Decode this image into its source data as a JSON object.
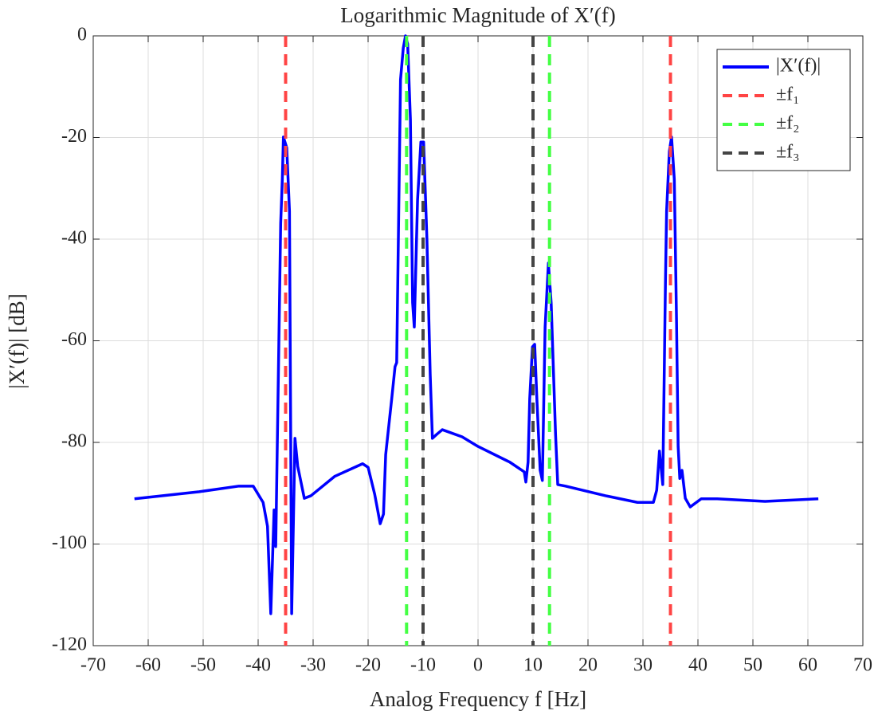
{
  "chart_data": {
    "type": "line",
    "title": "Logarithmic Magnitude of X′(f)",
    "x_label": "Analog Frequency f [Hz]",
    "y_label": "|X′(f)| [dB]",
    "xlim": [
      -70,
      70
    ],
    "ylim": [
      -120,
      0
    ],
    "xticks": [
      -70,
      -60,
      -50,
      -40,
      -30,
      -20,
      -10,
      0,
      10,
      20,
      30,
      40,
      50,
      60,
      70
    ],
    "yticks": [
      -120,
      -100,
      -80,
      -60,
      -40,
      -20,
      0
    ],
    "grid": true,
    "legend": "upper right",
    "series": [
      {
        "name": "|X′(f)|",
        "color": "#0000ff",
        "x": [
          -62.5,
          -50.7,
          -43.5,
          -40.9,
          -39.1,
          -38.3,
          -37.7,
          -37.1,
          -36.8,
          -35.9,
          -35.6,
          -35.4,
          -34.8,
          -34.3,
          -33.9,
          -33.3,
          -32.8,
          -31.6,
          -30.4,
          -26.1,
          -21.0,
          -20.0,
          -18.8,
          -17.8,
          -17.2,
          -16.8,
          -15.7,
          -15.1,
          -14.8,
          -14.1,
          -13.6,
          -13.2,
          -12.8,
          -12.3,
          -11.9,
          -11.6,
          -11.0,
          -10.4,
          -9.9,
          -9.3,
          -8.7,
          -8.3,
          -7.5,
          -6.5,
          -2.9,
          0,
          5.8,
          8.4,
          8.7,
          9.1,
          9.4,
          9.9,
          10.3,
          10.7,
          11.3,
          11.7,
          12.2,
          12.8,
          13.3,
          14.1,
          14.5,
          15.9,
          23.2,
          29,
          31.9,
          32.5,
          33,
          33.6,
          34.1,
          34.3,
          34.8,
          35.2,
          35.7,
          36.1,
          36.4,
          36.7,
          37.1,
          37.7,
          38.6,
          40.6,
          43.5,
          52.2,
          61.9
        ],
        "values": [
          -91.1,
          -89.7,
          -88.6,
          -88.6,
          -91.8,
          -96.5,
          -113.7,
          -93.3,
          -100.5,
          -36.9,
          -28.2,
          -19.9,
          -22,
          -34.5,
          -113.7,
          -79.2,
          -84.7,
          -91,
          -90.5,
          -86.7,
          -84.2,
          -84.9,
          -90.2,
          -96,
          -94.1,
          -82.4,
          -71.4,
          -65.1,
          -64.3,
          -8.6,
          -2.4,
          0,
          -1.6,
          -16.5,
          -52.5,
          -57.3,
          -32.2,
          -20.9,
          -20.9,
          -40,
          -66.7,
          -79.2,
          -78.4,
          -77.5,
          -78.9,
          -80.8,
          -83.9,
          -85.8,
          -87.8,
          -83.9,
          -71.4,
          -61.2,
          -60.7,
          -71.4,
          -85.5,
          -87.5,
          -57.3,
          -44.7,
          -52.5,
          -78.4,
          -88.3,
          -88.6,
          -90.5,
          -91.8,
          -91.8,
          -89.4,
          -81.7,
          -88.3,
          -47.8,
          -34.5,
          -22.7,
          -19.9,
          -28.2,
          -55.7,
          -80.8,
          -87.1,
          -85.5,
          -91,
          -92.7,
          -91.1,
          -91.1,
          -91.6,
          -91.1
        ]
      }
    ],
    "vlines": [
      {
        "name": "±f₁",
        "color": "#ff4444",
        "x": [
          -35,
          35
        ]
      },
      {
        "name": "±f₂",
        "color": "#44ff44",
        "x": [
          -13,
          13
        ]
      },
      {
        "name": "±f₃",
        "color": "#444444",
        "x": [
          -10,
          10
        ]
      }
    ]
  }
}
